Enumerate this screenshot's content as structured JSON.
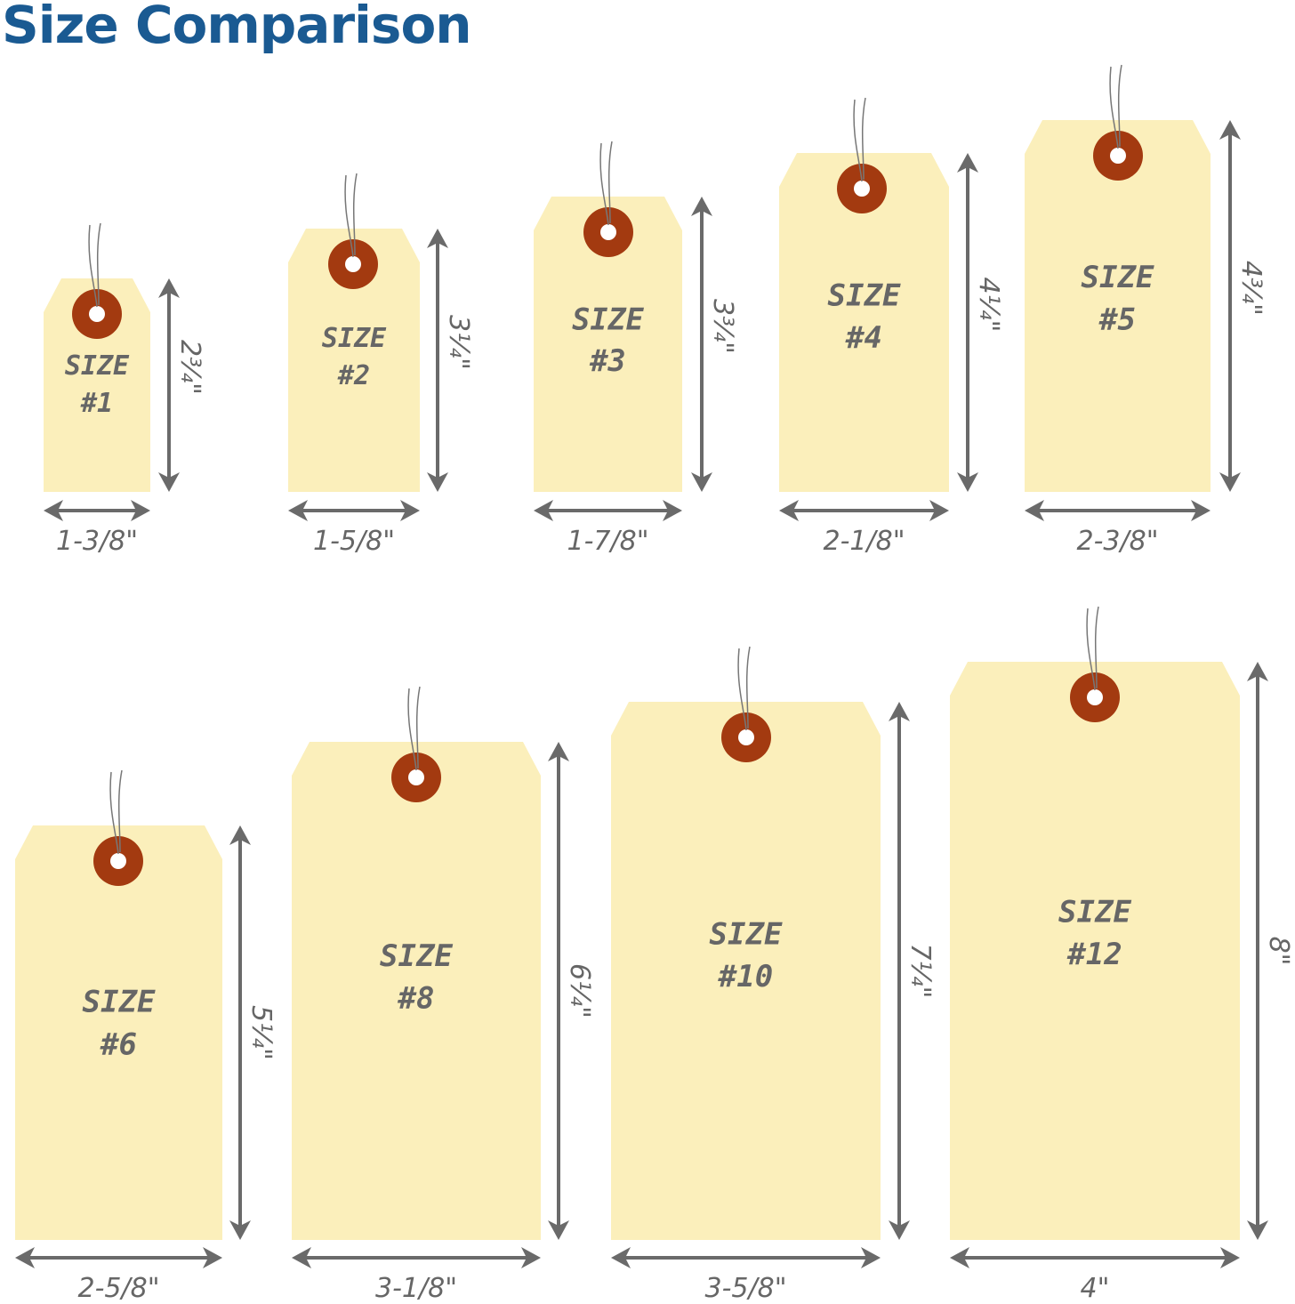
{
  "title": "Size Comparison",
  "colors": {
    "title": "#1a5a92",
    "tag": "#fbefbb",
    "reinforcement": "#a33a10",
    "arrow": "#6a6a6a",
    "text": "#666666"
  },
  "tags": [
    {
      "size_word": "SIZE",
      "number": "#1",
      "width": "1-3/8\"",
      "height": "2¾\""
    },
    {
      "size_word": "SIZE",
      "number": "#2",
      "width": "1-5/8\"",
      "height": "3¼\""
    },
    {
      "size_word": "SIZE",
      "number": "#3",
      "width": "1-7/8\"",
      "height": "3¾\""
    },
    {
      "size_word": "SIZE",
      "number": "#4",
      "width": "2-1/8\"",
      "height": "4¼\""
    },
    {
      "size_word": "SIZE",
      "number": "#5",
      "width": "2-3/8\"",
      "height": "4¾\""
    },
    {
      "size_word": "SIZE",
      "number": "#6",
      "width": "2-5/8\"",
      "height": "5¼\""
    },
    {
      "size_word": "SIZE",
      "number": "#8",
      "width": "3-1/8\"",
      "height": "6¼\""
    },
    {
      "size_word": "SIZE",
      "number": "#10",
      "width": "3-5/8\"",
      "height": "7¼\""
    },
    {
      "size_word": "SIZE",
      "number": "#12",
      "width": "4\"",
      "height": "8\""
    }
  ]
}
